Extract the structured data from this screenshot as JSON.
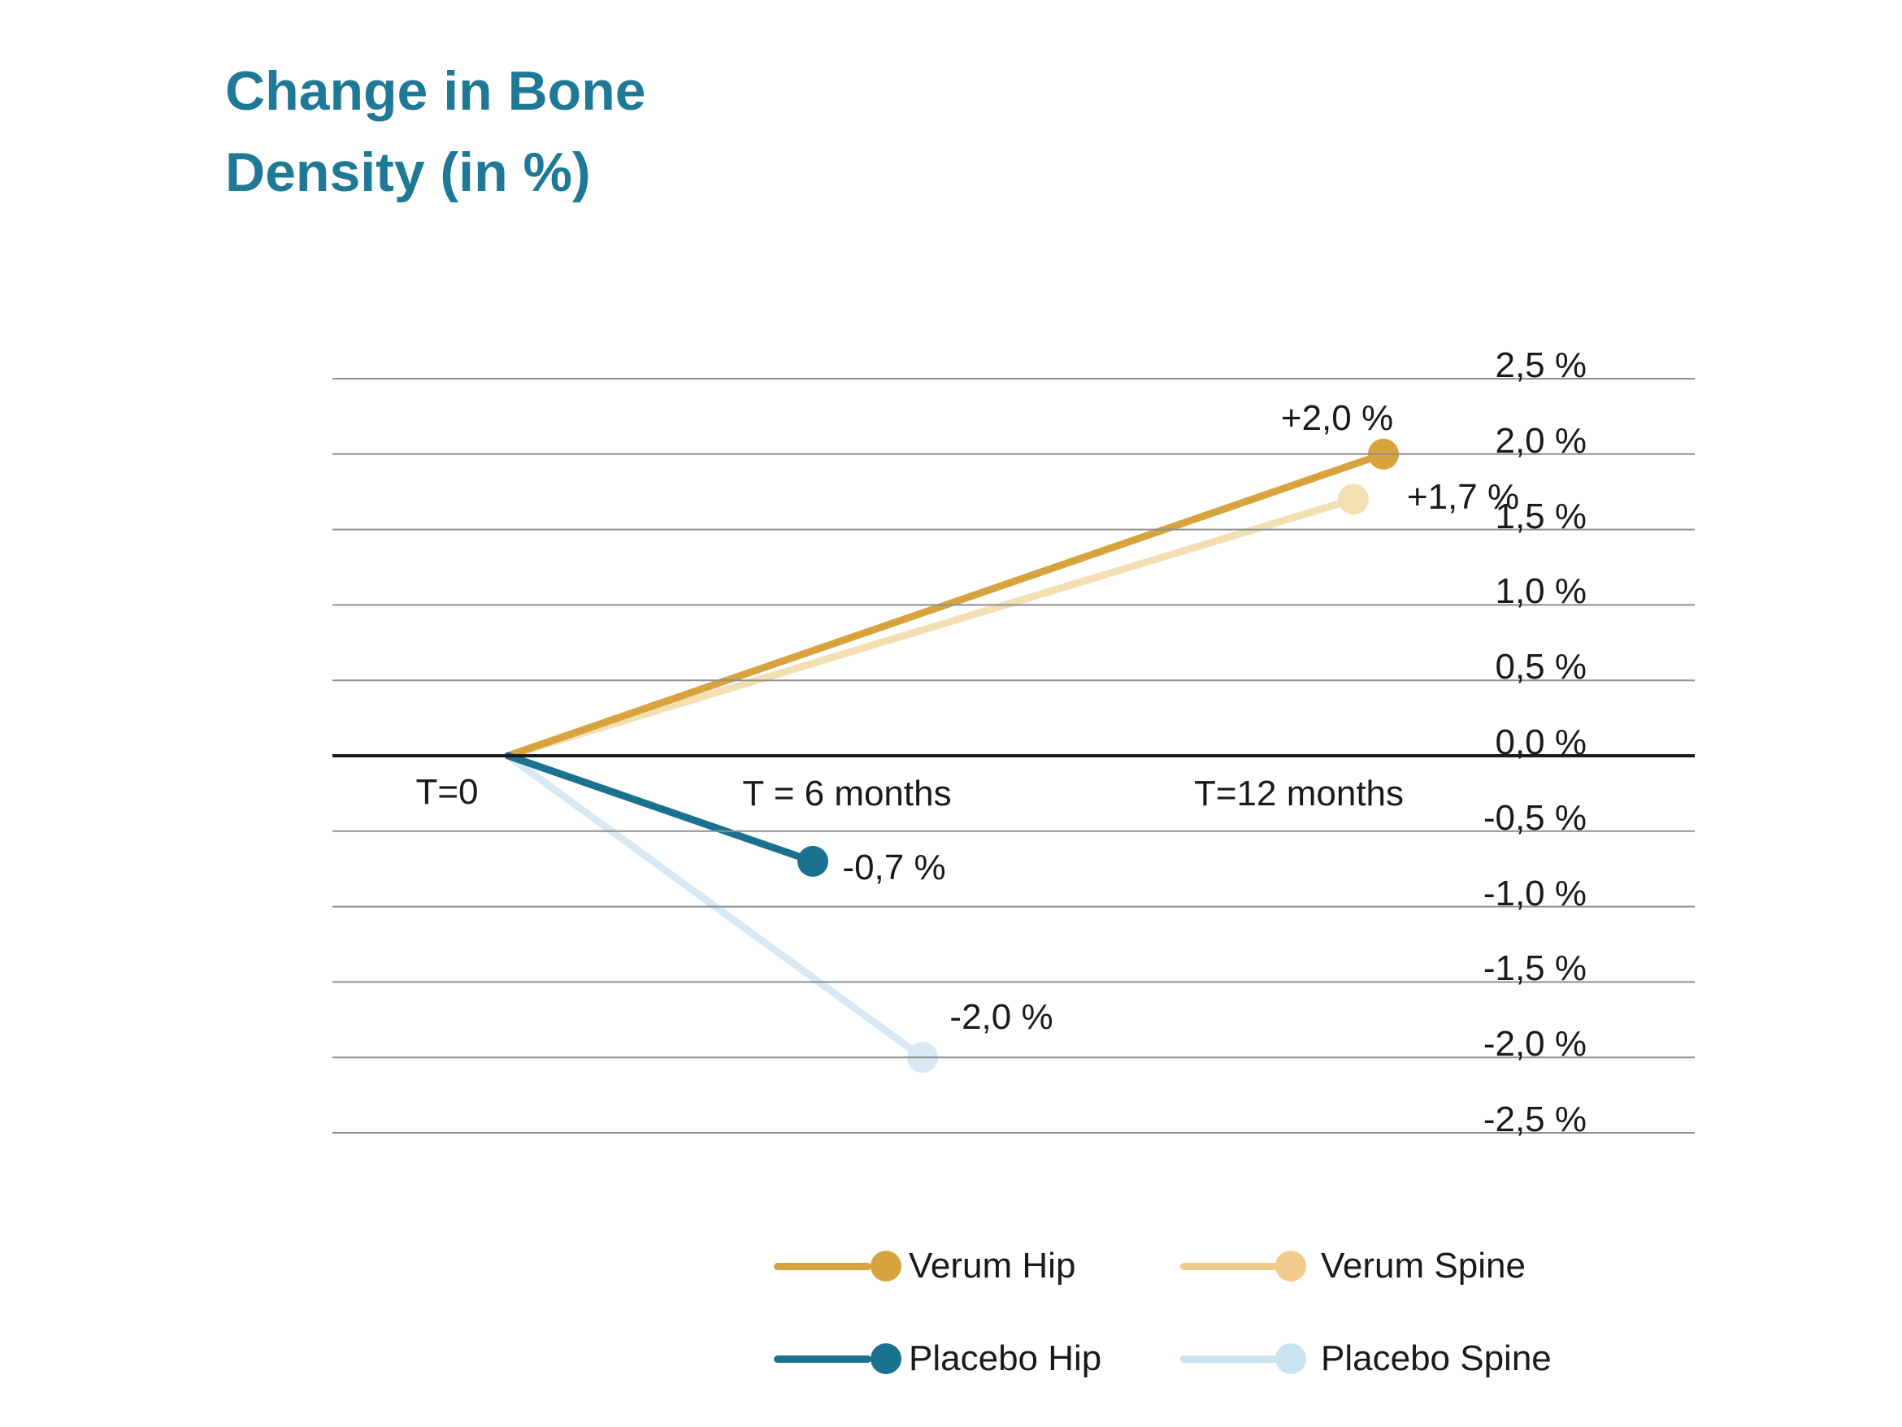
{
  "title": {
    "line1": "Change in Bone",
    "line2": "Density (in %)"
  },
  "colors": {
    "title": "#1F7996",
    "text": "#1A1A1A",
    "gridline": "#8F8F8F",
    "zero_line": "#1A1A1A",
    "background": "#FFFFFF"
  },
  "chart_data": {
    "type": "line",
    "title": "Change in Bone Density (in %)",
    "x_categories": [
      "T=0",
      "T = 6 months",
      "T=12 months"
    ],
    "x_values_months": [
      0,
      6,
      12
    ],
    "ylim": [
      -2.5,
      2.5
    ],
    "ytick_step": 0.5,
    "yticks": [
      2.5,
      2.0,
      1.5,
      1.0,
      0.5,
      0.0,
      -0.5,
      -1.0,
      -1.5,
      -2.0,
      -2.5
    ],
    "ytick_labels": [
      "2,5 %",
      "2,0 %",
      "1,5 %",
      "1,0 %",
      "0,5 %",
      "0,0 %",
      "-0,5 %",
      "-1,0 %",
      "-1,5 %",
      "-2,0 %",
      "-2,5 %"
    ],
    "grid": true,
    "legend_position": "bottom",
    "series": [
      {
        "name": "Verum Hip",
        "color": "#D8A33C",
        "points": [
          {
            "t_months": 0,
            "value": 0.0
          },
          {
            "t_months": 12,
            "value": 2.0
          }
        ],
        "end_label": "+2,0 %"
      },
      {
        "name": "Verum Spine",
        "color": "#F4DFB3",
        "points": [
          {
            "t_months": 0,
            "value": 0.0
          },
          {
            "t_months": 12,
            "value": 1.7
          }
        ],
        "end_label": "+1,7 %"
      },
      {
        "name": "Placebo Hip",
        "color": "#1A7290",
        "points": [
          {
            "t_months": 0,
            "value": 0.0
          },
          {
            "t_months": 6,
            "value": -0.7
          }
        ],
        "end_label": "-0,7 %"
      },
      {
        "name": "Placebo Spine",
        "color": "#D9E9F4",
        "points": [
          {
            "t_months": 0,
            "value": 0.0
          },
          {
            "t_months": 6,
            "value": -2.0
          }
        ],
        "end_label": "-2,0 %"
      }
    ]
  },
  "legend": {
    "items": [
      {
        "label": "Verum Hip",
        "color": "#D8A33C"
      },
      {
        "label": "Verum Spine",
        "color": "#F0CB8B"
      },
      {
        "label": "Placebo Hip",
        "color": "#1A7290"
      },
      {
        "label": "Placebo Spine",
        "color": "#CBE3F1"
      }
    ]
  }
}
